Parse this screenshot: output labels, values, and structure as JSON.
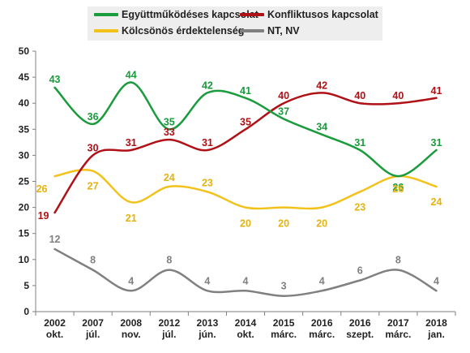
{
  "chart_data": {
    "type": "line",
    "categories": [
      [
        "2002",
        "okt."
      ],
      [
        "2007",
        "júl."
      ],
      [
        "2008",
        "nov."
      ],
      [
        "2012",
        "júl."
      ],
      [
        "2013",
        "jún."
      ],
      [
        "2014",
        "okt."
      ],
      [
        "2015",
        "márc."
      ],
      [
        "2016",
        "márc."
      ],
      [
        "2016",
        "szept."
      ],
      [
        "2017",
        "márc."
      ],
      [
        "2018",
        "jan."
      ]
    ],
    "series": [
      {
        "name": "Együttműködéses kapcsolat",
        "color": "#1a9b3c",
        "values": [
          43,
          36,
          44,
          35,
          42,
          41,
          37,
          34,
          31,
          26,
          31
        ]
      },
      {
        "name": "Konfliktusos kapcsolat",
        "color": "#b01116",
        "values": [
          19,
          30,
          31,
          33,
          31,
          35,
          40,
          42,
          40,
          40,
          41
        ]
      },
      {
        "name": "Kölcsönös érdektelenség",
        "color": "#f2c21b",
        "values": [
          26,
          27,
          21,
          24,
          23,
          20,
          20,
          20,
          23,
          26,
          24
        ]
      },
      {
        "name": "NT, NV",
        "color": "#808080",
        "values": [
          12,
          8,
          4,
          8,
          4,
          4,
          3,
          4,
          6,
          8,
          4
        ]
      }
    ],
    "ylim": [
      0,
      50
    ],
    "yticks": [
      0,
      5,
      10,
      15,
      20,
      25,
      30,
      35,
      40,
      45,
      50
    ],
    "grid": false,
    "legend": "top"
  }
}
